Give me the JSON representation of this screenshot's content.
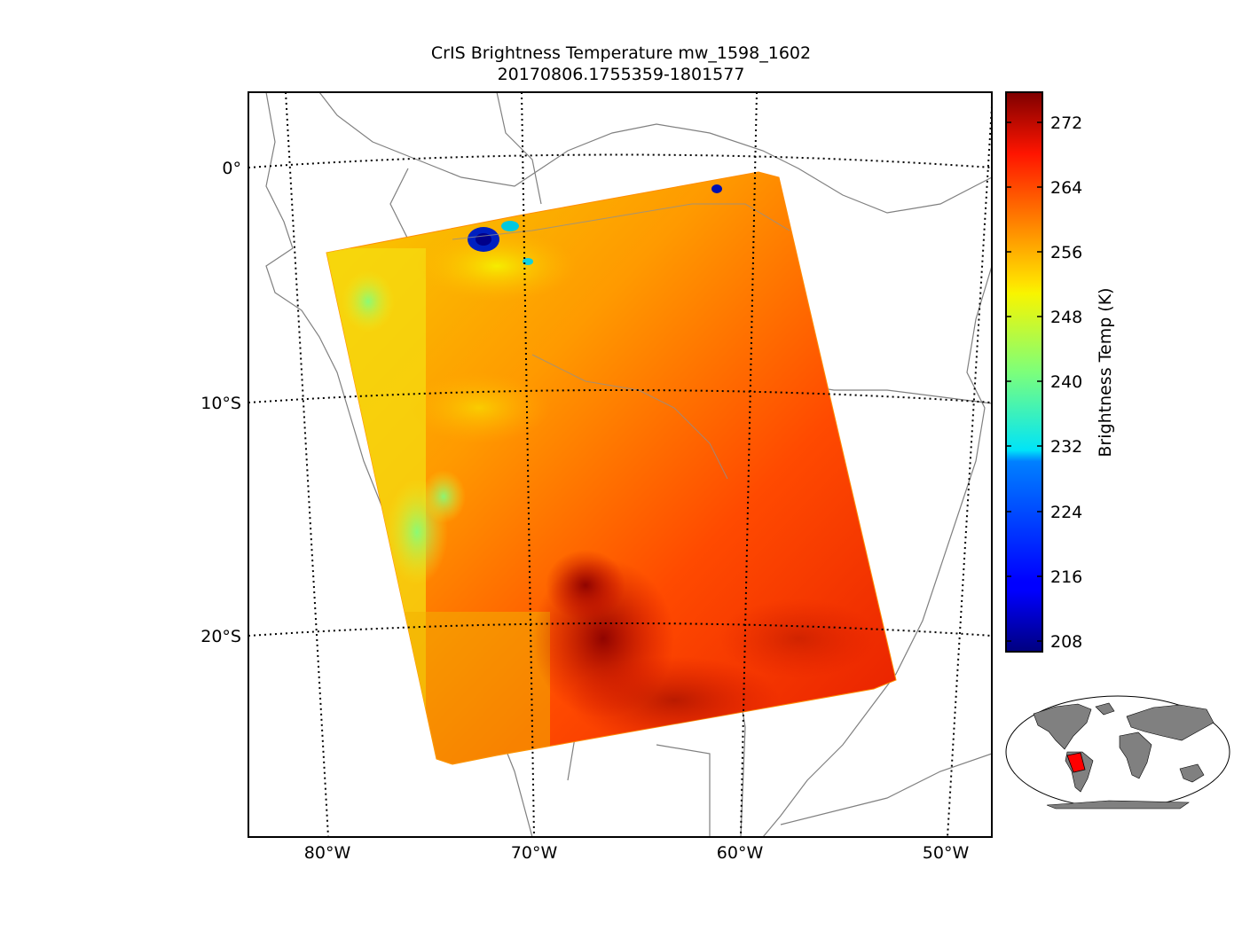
{
  "figure": {
    "title_line1": "CrIS Brightness Temperature mw_1598_1602",
    "title_line2": "20170806.1755359-1801577"
  },
  "map": {
    "lat_labels": [
      "0°",
      "10°S",
      "20°S"
    ],
    "lon_labels": [
      "80°W",
      "70°W",
      "60°W",
      "50°W"
    ],
    "coastline_color": "#808080",
    "gridline_style": "dotted black"
  },
  "colorbar": {
    "label": "Brightness Temp (K)",
    "ticks": [
      "272",
      "264",
      "256",
      "248",
      "240",
      "232",
      "224",
      "216",
      "208"
    ],
    "range": [
      206,
      276
    ],
    "colormap": "jet"
  },
  "inset": {
    "description_colors": {
      "land": "#808080",
      "swath": "#ff0000",
      "ocean": "#ffffff"
    }
  }
}
